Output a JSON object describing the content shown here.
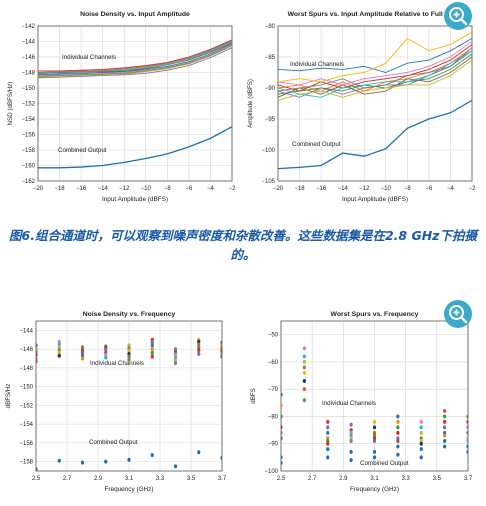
{
  "caption": "图6.组合通道时，可以观察到噪声密度和杂散改善。这些数据集是在2.8 GHz下拍摄的。",
  "icons": {
    "zoom": "zoom-in-icon"
  },
  "colors": {
    "combined": "#1f6fb4",
    "channels": [
      "#1f77b4",
      "#ff7f0e",
      "#2ca02c",
      "#d62728",
      "#9467bd",
      "#8c564b",
      "#e377c2",
      "#17becf",
      "#bcbd22",
      "#7f7f7f",
      "#f4b400",
      "#003f7f",
      "#e6550d",
      "#31a354",
      "#de2d26",
      "#756bb1"
    ]
  },
  "chart_data": [
    {
      "type": "line",
      "title": "Noise Density vs. Input Amplitude",
      "xlabel": "Input Amplitude (dBFS)",
      "ylabel": "NSD (dBFS/Hz)",
      "xlim": [
        -20,
        -2
      ],
      "ylim": [
        -162,
        -142
      ],
      "xticks": [
        -20,
        -18,
        -16,
        -14,
        -12,
        -10,
        -8,
        -6,
        -4,
        -2
      ],
      "yticks": [
        -162,
        -160,
        -158,
        -156,
        -154,
        -152,
        -150,
        -148,
        -146,
        -144,
        -142
      ],
      "grid": true,
      "x": [
        -20,
        -18,
        -16,
        -14,
        -12,
        -10,
        -8,
        -6,
        -4,
        -2
      ],
      "series": [
        {
          "name": "Combined Output",
          "values": [
            -160.3,
            -160.3,
            -160.2,
            -160.0,
            -159.6,
            -159.1,
            -158.5,
            -157.6,
            -156.5,
            -155.0
          ]
        },
        {
          "values": [
            -148.3,
            -148.2,
            -148.1,
            -148.0,
            -147.9,
            -147.6,
            -147.2,
            -146.6,
            -145.6,
            -144.3
          ]
        },
        {
          "values": [
            -148.0,
            -147.9,
            -147.8,
            -147.7,
            -147.6,
            -147.3,
            -146.9,
            -146.2,
            -145.2,
            -144.0
          ]
        },
        {
          "values": [
            -148.5,
            -148.4,
            -148.3,
            -148.2,
            -148.1,
            -147.8,
            -147.4,
            -146.8,
            -145.8,
            -144.5
          ]
        },
        {
          "values": [
            -147.8,
            -147.8,
            -147.7,
            -147.6,
            -147.4,
            -147.1,
            -146.7,
            -146.0,
            -145.0,
            -143.8
          ]
        },
        {
          "values": [
            -148.7,
            -148.6,
            -148.5,
            -148.4,
            -148.3,
            -148.1,
            -147.7,
            -147.1,
            -146.1,
            -144.8
          ]
        },
        {
          "values": [
            -148.2,
            -148.0,
            -147.9,
            -147.9,
            -147.8,
            -147.5,
            -147.0,
            -146.4,
            -145.4,
            -144.2
          ]
        },
        {
          "values": [
            -148.4,
            -148.3,
            -148.2,
            -148.1,
            -148.0,
            -147.7,
            -147.3,
            -146.7,
            -145.7,
            -144.4
          ]
        },
        {
          "values": [
            -148.1,
            -148.1,
            -148.0,
            -147.8,
            -147.7,
            -147.4,
            -147.0,
            -146.3,
            -145.3,
            -144.1
          ]
        },
        {
          "values": [
            -148.6,
            -148.5,
            -148.4,
            -148.3,
            -148.2,
            -147.9,
            -147.5,
            -146.9,
            -145.9,
            -144.6
          ]
        },
        {
          "values": [
            -148.0,
            -147.9,
            -147.9,
            -147.8,
            -147.5,
            -147.2,
            -146.8,
            -146.1,
            -145.1,
            -143.9
          ]
        }
      ],
      "annotations": [
        "Individual Channels",
        "Combined Output"
      ]
    },
    {
      "type": "line",
      "title": "Worst Spurs vs. Input Amplitude Relative to Full Scale",
      "xlabel": "Input Amplitude (dBFS)",
      "ylabel": "Amplitude (dBFS)",
      "xlim": [
        -20,
        -2
      ],
      "ylim": [
        -105,
        -80
      ],
      "xticks": [
        -20,
        -18,
        -16,
        -14,
        -12,
        -10,
        -8,
        -6,
        -4,
        -2
      ],
      "yticks": [
        -105,
        -100,
        -95,
        -90,
        -85,
        -80
      ],
      "grid": true,
      "x": [
        -20,
        -18,
        -16,
        -14,
        -12,
        -10,
        -8,
        -6,
        -4,
        -2
      ],
      "series": [
        {
          "name": "Combined Output",
          "values": [
            -103.0,
            -102.8,
            -102.5,
            -100.5,
            -101.0,
            -99.8,
            -96.5,
            -95.0,
            -94.0,
            -92.0
          ]
        },
        {
          "values": [
            -87.0,
            -87.2,
            -86.8,
            -87.0,
            -86.5,
            -87.5,
            -86.0,
            -85.5,
            -84.0,
            -82.0
          ]
        },
        {
          "values": [
            -90.0,
            -89.5,
            -90.5,
            -89.0,
            -90.5,
            -89.0,
            -88.5,
            -87.5,
            -86.0,
            -83.5
          ]
        },
        {
          "values": [
            -91.0,
            -90.5,
            -90.0,
            -90.5,
            -89.5,
            -90.0,
            -89.0,
            -88.5,
            -87.0,
            -84.5
          ]
        },
        {
          "values": [
            -89.5,
            -90.5,
            -89.0,
            -90.0,
            -89.0,
            -88.5,
            -88.0,
            -87.0,
            -85.5,
            -83.0
          ]
        },
        {
          "values": [
            -90.5,
            -91.5,
            -90.0,
            -91.0,
            -90.0,
            -89.5,
            -89.5,
            -88.0,
            -86.5,
            -84.0
          ]
        },
        {
          "values": [
            -91.5,
            -90.0,
            -91.0,
            -89.5,
            -91.0,
            -90.5,
            -88.5,
            -89.0,
            -87.5,
            -85.0
          ]
        },
        {
          "values": [
            -89.0,
            -89.5,
            -88.5,
            -89.5,
            -88.5,
            -88.0,
            -87.5,
            -86.5,
            -85.0,
            -82.5
          ]
        },
        {
          "values": [
            -90.0,
            -91.0,
            -91.5,
            -90.0,
            -89.5,
            -89.0,
            -89.0,
            -88.0,
            -86.0,
            -84.0
          ]
        },
        {
          "values": [
            -92.0,
            -91.0,
            -90.5,
            -91.5,
            -90.5,
            -90.0,
            -89.5,
            -89.5,
            -88.0,
            -85.5
          ]
        },
        {
          "values": [
            -90.5,
            -90.0,
            -89.5,
            -88.5,
            -90.0,
            -89.5,
            -88.0,
            -87.5,
            -86.5,
            -83.5
          ]
        },
        {
          "values": [
            -89.0,
            -88.5,
            -89.0,
            -88.0,
            -87.5,
            -86.0,
            -82.0,
            -84.0,
            -83.0,
            -81.0
          ]
        }
      ],
      "annotations": [
        "Individual Channels",
        "Combined Output"
      ]
    },
    {
      "type": "scatter",
      "title": "Noise Density vs. Frequency",
      "xlabel": "Frequency (GHz)",
      "ylabel": "dBFS/Hz",
      "xlim": [
        2.5,
        3.7
      ],
      "ylim": [
        -159,
        -143
      ],
      "xticks": [
        2.5,
        2.7,
        2.9,
        3.1,
        3.3,
        3.5,
        3.7
      ],
      "yticks": [
        -158,
        -156,
        -154,
        -152,
        -150,
        -148,
        -146,
        -144
      ],
      "grid": true,
      "series": [
        {
          "name": "Individual Channels",
          "x": [
            2.5,
            2.5,
            2.5,
            2.5,
            2.5,
            2.5,
            2.65,
            2.65,
            2.65,
            2.65,
            2.65,
            2.65,
            2.8,
            2.8,
            2.8,
            2.8,
            2.8,
            2.8,
            2.95,
            2.95,
            2.95,
            2.95,
            2.95,
            2.95,
            3.1,
            3.1,
            3.1,
            3.1,
            3.1,
            3.1,
            3.25,
            3.25,
            3.25,
            3.25,
            3.25,
            3.25,
            3.4,
            3.4,
            3.4,
            3.4,
            3.4,
            3.4,
            3.55,
            3.55,
            3.55,
            3.55,
            3.55,
            3.55,
            3.7,
            3.7,
            3.7,
            3.7,
            3.7,
            3.7
          ],
          "y": [
            -145.6,
            -146.0,
            -146.3,
            -146.6,
            -147.0,
            -147.3,
            -145.2,
            -145.5,
            -145.8,
            -146.1,
            -146.4,
            -146.7,
            -145.8,
            -146.0,
            -146.2,
            -146.4,
            -146.7,
            -147.0,
            -145.7,
            -145.9,
            -146.1,
            -146.4,
            -146.6,
            -146.9,
            -145.6,
            -145.9,
            -146.2,
            -146.5,
            -146.8,
            -147.1,
            -145.0,
            -145.3,
            -145.6,
            -146.0,
            -146.4,
            -146.8,
            -146.0,
            -146.3,
            -146.6,
            -146.9,
            -147.2,
            -147.5,
            -145.0,
            -145.2,
            -145.5,
            -145.8,
            -146.1,
            -146.5,
            -145.3,
            -145.6,
            -145.9,
            -146.2,
            -146.5,
            -146.8
          ]
        },
        {
          "name": "Combined Output",
          "x": [
            2.5,
            2.65,
            2.8,
            2.95,
            3.1,
            3.25,
            3.4,
            3.55,
            3.7
          ],
          "y": [
            -158.8,
            -157.9,
            -158.1,
            -158.0,
            -157.8,
            -157.3,
            -158.5,
            -157.0,
            -157.6
          ]
        }
      ],
      "annotations": [
        "Individual Channels",
        "Combined Output"
      ]
    },
    {
      "type": "scatter",
      "title": "Worst Spurs vs. Frequency",
      "xlabel": "Frequency (GHz)",
      "ylabel": "dBFS",
      "xlim": [
        2.5,
        3.7
      ],
      "ylim": [
        -100,
        -45
      ],
      "xticks": [
        2.5,
        2.7,
        2.9,
        3.1,
        3.3,
        3.5,
        3.7
      ],
      "yticks": [
        -100,
        -90,
        -80,
        -70,
        -60,
        -50
      ],
      "grid": true,
      "series": [
        {
          "name": "Individual Channels",
          "x": [
            2.5,
            2.5,
            2.5,
            2.5,
            2.5,
            2.5,
            2.65,
            2.65,
            2.65,
            2.65,
            2.65,
            2.65,
            2.65,
            2.65,
            2.8,
            2.8,
            2.8,
            2.8,
            2.8,
            2.8,
            2.95,
            2.95,
            2.95,
            2.95,
            2.95,
            2.95,
            3.1,
            3.1,
            3.1,
            3.1,
            3.1,
            3.1,
            3.25,
            3.25,
            3.25,
            3.25,
            3.25,
            3.25,
            3.4,
            3.4,
            3.4,
            3.4,
            3.4,
            3.4,
            3.55,
            3.55,
            3.55,
            3.55,
            3.55,
            3.55,
            3.7,
            3.7,
            3.7,
            3.7,
            3.7,
            3.7
          ],
          "y": [
            -72,
            -76,
            -80,
            -84,
            -86,
            -88,
            -55,
            -58,
            -60,
            -62,
            -64,
            -67,
            -70,
            -74,
            -82,
            -84,
            -86,
            -88,
            -89,
            -90,
            -83,
            -85,
            -86,
            -87,
            -88,
            -89,
            -82,
            -84,
            -86,
            -87,
            -88,
            -89,
            -80,
            -82,
            -84,
            -86,
            -88,
            -89,
            -82,
            -84,
            -86,
            -88,
            -89,
            -90,
            -78,
            -80,
            -82,
            -84,
            -86,
            -87,
            -80,
            -82,
            -84,
            -86,
            -88,
            -89
          ]
        },
        {
          "name": "Combined Output",
          "x": [
            2.5,
            2.5,
            2.8,
            2.8,
            2.95,
            2.95,
            3.1,
            3.1,
            3.25,
            3.25,
            3.4,
            3.4,
            3.55,
            3.55,
            3.7,
            3.7
          ],
          "y": [
            -95,
            -97,
            -92,
            -95,
            -93,
            -96,
            -93,
            -95,
            -91,
            -94,
            -92,
            -95,
            -89,
            -91,
            -91,
            -93
          ]
        }
      ],
      "annotations": [
        "Individual Channels",
        "Combined Output"
      ]
    }
  ]
}
